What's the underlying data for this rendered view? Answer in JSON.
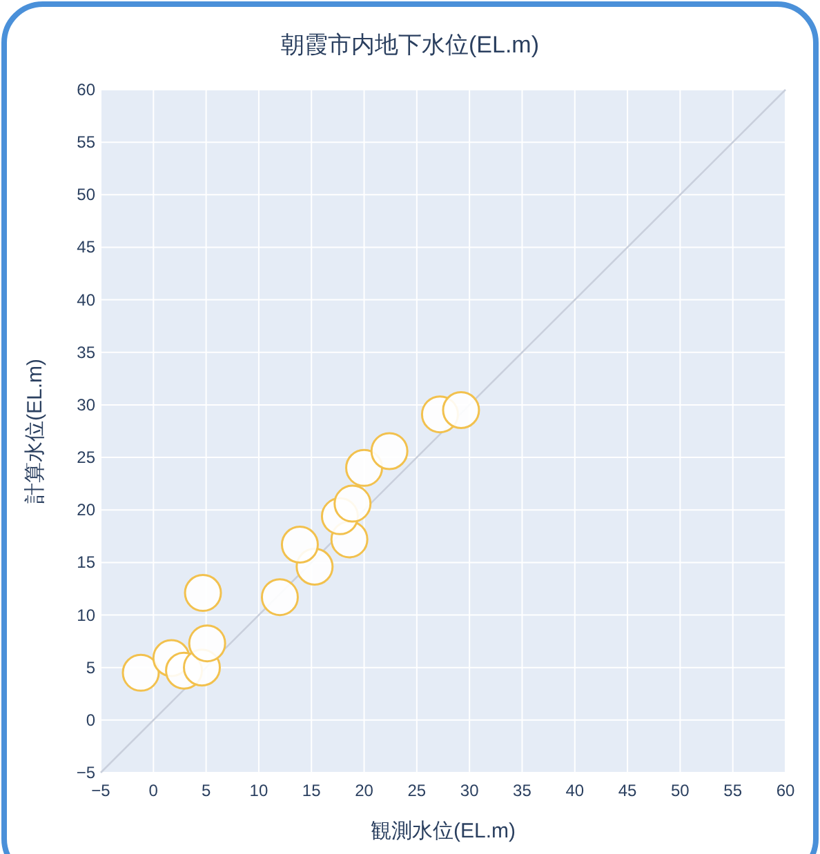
{
  "chart_data": {
    "type": "scatter",
    "title": "朝霞市内地下水位(EL.m)",
    "xlabel": "観測水位(EL.m)",
    "ylabel": "計算水位(EL.m)",
    "xlim": [
      -5,
      60
    ],
    "ylim": [
      -5,
      60
    ],
    "xticks": [
      -5,
      0,
      5,
      10,
      15,
      20,
      25,
      30,
      35,
      40,
      45,
      50,
      55,
      60
    ],
    "yticks": [
      -5,
      0,
      5,
      10,
      15,
      20,
      25,
      30,
      35,
      40,
      45,
      50,
      55,
      60
    ],
    "grid": true,
    "marker": "circle",
    "series": [
      {
        "type": "line",
        "marker": "none",
        "color": "#c9cfdc",
        "x": [
          -5,
          60
        ],
        "values": [
          -5,
          60
        ]
      },
      {
        "color": "#f2c14e",
        "x": [
          -1.2,
          1.7,
          2.9,
          4.6,
          5.1,
          4.7,
          12.0,
          15.3,
          13.9,
          18.6,
          17.7,
          18.9,
          20.0,
          22.4,
          27.2,
          29.2
        ],
        "values": [
          4.5,
          5.9,
          4.7,
          5.0,
          7.3,
          12.1,
          11.7,
          14.6,
          16.7,
          17.2,
          19.4,
          20.6,
          24.0,
          25.6,
          29.1,
          29.5
        ]
      }
    ]
  }
}
